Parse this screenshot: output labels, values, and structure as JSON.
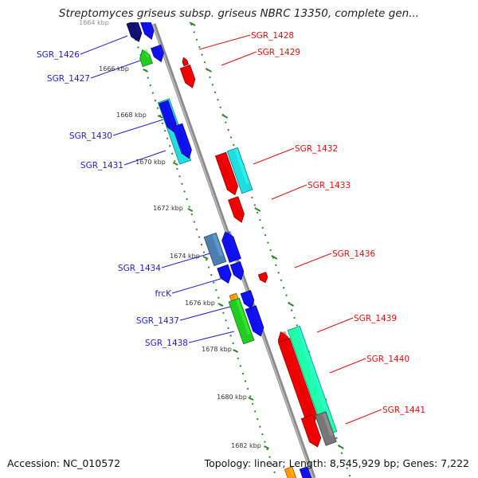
{
  "title": "Streptomyces griseus subsp. griseus NBRC 13350, complete gen...",
  "footer": {
    "accession": "Accession: NC_010572",
    "topology": "Topology: linear; Length: 8,545,929 bp; Genes: 7,222"
  },
  "colors": {
    "backbone": "#8a8a8a",
    "left_labels": "#1f1fcf",
    "right_labels": "#e01010",
    "ticks": "#2a8a2a",
    "blue": "#1010ee",
    "navy": "#101070",
    "green": "#22cc22",
    "cyan": "#22dddd",
    "red": "#ee0000",
    "steel": "#4c7fb0",
    "orange": "#ff9900",
    "mint": "#22ffaa",
    "gray": "#777777"
  },
  "scale_labels": [
    "1664 kbp",
    "1666 kbp",
    "1668 kbp",
    "1670 kbp",
    "1672 kbp",
    "1674 kbp",
    "1676 kbp",
    "1678 kbp",
    "1680 kbp",
    "1682 kbp"
  ],
  "genes_left": [
    "SGR_1426",
    "SGR_1427",
    "SGR_1430",
    "SGR_1431",
    "SGR_1434",
    "frcK",
    "SGR_1437",
    "SGR_1438"
  ],
  "genes_right": [
    "SGR_1428",
    "SGR_1429",
    "SGR_1432",
    "SGR_1433",
    "SGR_1436",
    "SGR_1439",
    "SGR_1440",
    "SGR_1441"
  ]
}
